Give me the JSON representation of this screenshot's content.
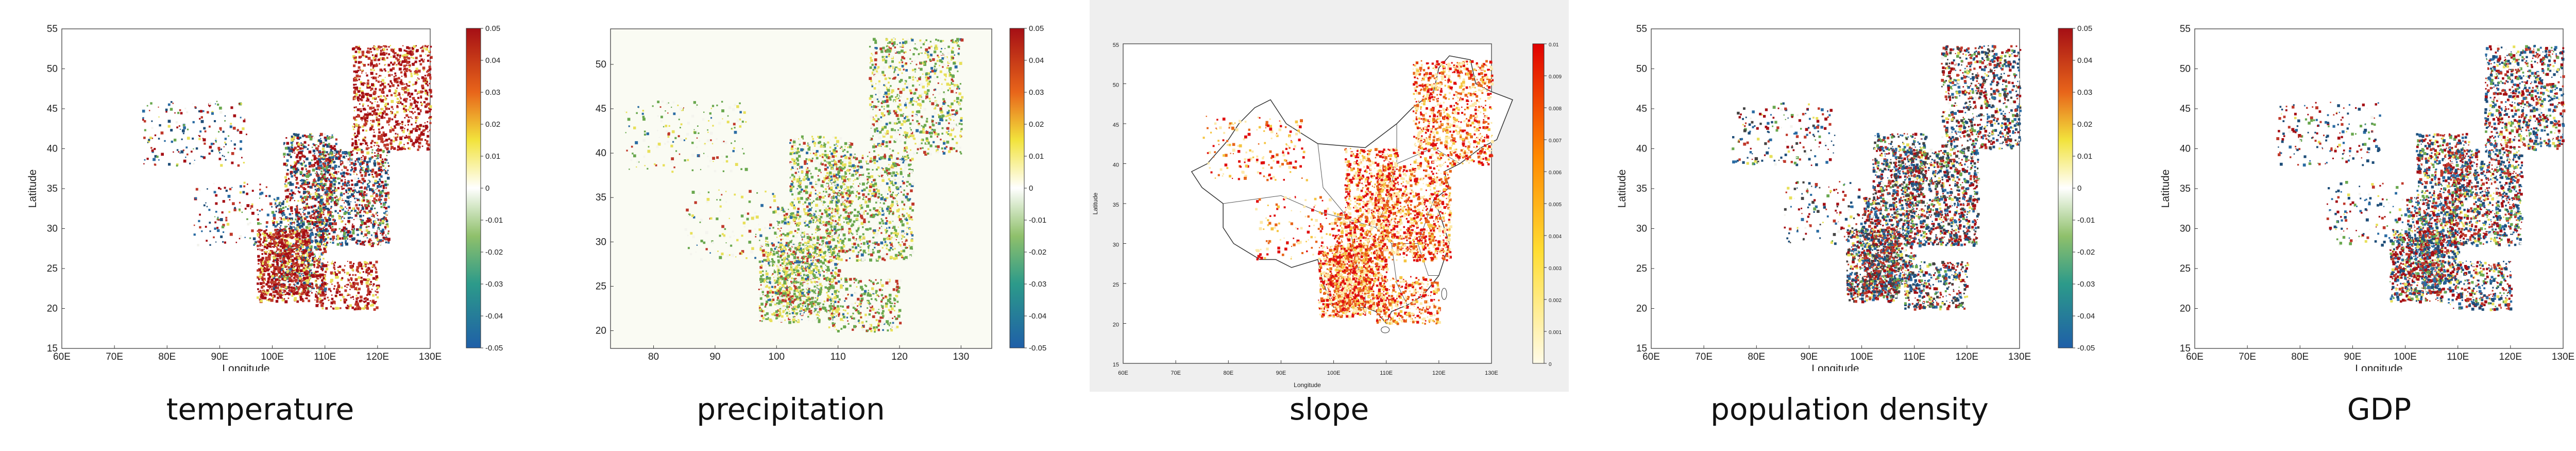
{
  "captions": [
    "temperature",
    "precipitation",
    "slope",
    "population density",
    "GDP"
  ],
  "colors": {
    "red": "#c0392b",
    "dark_red": "#a50f15",
    "blue": "#2b6ca3",
    "dark_blue": "#1f4e79",
    "green": "#6aa84f",
    "dark_gray": "#444444",
    "yellow": "#e8e05a",
    "slope_orange": "#e8651a",
    "slope_bg": "#efefef",
    "precip_bg": "#fafbf3"
  },
  "chart_data": [
    {
      "type": "heatmap",
      "title": "temperature",
      "xlabel": "Longitude",
      "ylabel": "Latitude",
      "xlim": [
        60,
        130
      ],
      "ylim": [
        15,
        55
      ],
      "xticks": [
        "60E",
        "70E",
        "80E",
        "90E",
        "100E",
        "110E",
        "120E",
        "130E"
      ],
      "yticks": [
        "15",
        "20",
        "25",
        "30",
        "35",
        "40",
        "45",
        "50",
        "55"
      ],
      "colorbar": {
        "ticks": [
          "0.05",
          "0.04",
          "0.03",
          "0.02",
          "0.01",
          "0",
          "-0.01",
          "-0.02",
          "-0.03",
          "-0.04",
          "-0.05"
        ],
        "range": [
          -0.05,
          0.05
        ]
      }
    },
    {
      "type": "heatmap",
      "title": "precipitation",
      "xlabel": "",
      "ylabel": "",
      "xlim": [
        73,
        135
      ],
      "ylim": [
        18,
        54
      ],
      "xticks": [
        "80",
        "90",
        "100",
        "110",
        "120",
        "130"
      ],
      "yticks": [
        "20",
        "25",
        "30",
        "35",
        "40",
        "45",
        "50"
      ],
      "colorbar": {
        "ticks": [
          "0.05",
          "0.04",
          "0.03",
          "0.02",
          "0.01",
          "0",
          "-0.01",
          "-0.02",
          "-0.03",
          "-0.04",
          "-0.05"
        ],
        "range": [
          -0.05,
          0.05
        ]
      }
    },
    {
      "type": "heatmap",
      "title": "slope",
      "xlabel": "Longitude",
      "ylabel": "Latitude",
      "xlim": [
        60,
        130
      ],
      "ylim": [
        15,
        55
      ],
      "xticks": [
        "60E",
        "70E",
        "80E",
        "90E",
        "100E",
        "110E",
        "120E",
        "130E"
      ],
      "yticks": [
        "15",
        "20",
        "25",
        "30",
        "35",
        "40",
        "45",
        "50",
        "55"
      ],
      "colorbar": {
        "ticks": [
          "0.01",
          "0.009",
          "0.008",
          "0.007",
          "0.006",
          "0.005",
          "0.004",
          "0.003",
          "0.002",
          "0.001",
          "0"
        ],
        "range": [
          0,
          0.01
        ]
      }
    },
    {
      "type": "heatmap",
      "title": "population density",
      "xlabel": "Longitude",
      "ylabel": "Latitude",
      "xlim": [
        60,
        130
      ],
      "ylim": [
        15,
        55
      ],
      "xticks": [
        "60E",
        "70E",
        "80E",
        "90E",
        "100E",
        "110E",
        "120E",
        "130E"
      ],
      "yticks": [
        "15",
        "20",
        "25",
        "30",
        "35",
        "40",
        "45",
        "50",
        "55"
      ],
      "colorbar": {
        "ticks": [
          "0.05",
          "0.04",
          "0.03",
          "0.02",
          "0.01",
          "0",
          "-0.01",
          "-0.02",
          "-0.03",
          "-0.04",
          "-0.05"
        ],
        "range": [
          -0.05,
          0.05
        ]
      }
    },
    {
      "type": "heatmap",
      "title": "GDP",
      "xlabel": "Longitude",
      "ylabel": "Latitude",
      "xlim": [
        60,
        130
      ],
      "ylim": [
        15,
        55
      ],
      "xticks": [
        "60E",
        "70E",
        "80E",
        "90E",
        "100E",
        "110E",
        "120E",
        "130E"
      ],
      "yticks": [
        "15",
        "20",
        "25",
        "30",
        "35",
        "40",
        "45",
        "50",
        "55"
      ],
      "colorbar": {
        "ticks": [
          "0.05",
          "0.04",
          "0.03",
          "0.02",
          "0.01",
          "0",
          "-0.01",
          "-0.02",
          "-0.03",
          "-0.04",
          "-0.05"
        ],
        "range": [
          -0.05,
          0.05
        ]
      }
    }
  ]
}
